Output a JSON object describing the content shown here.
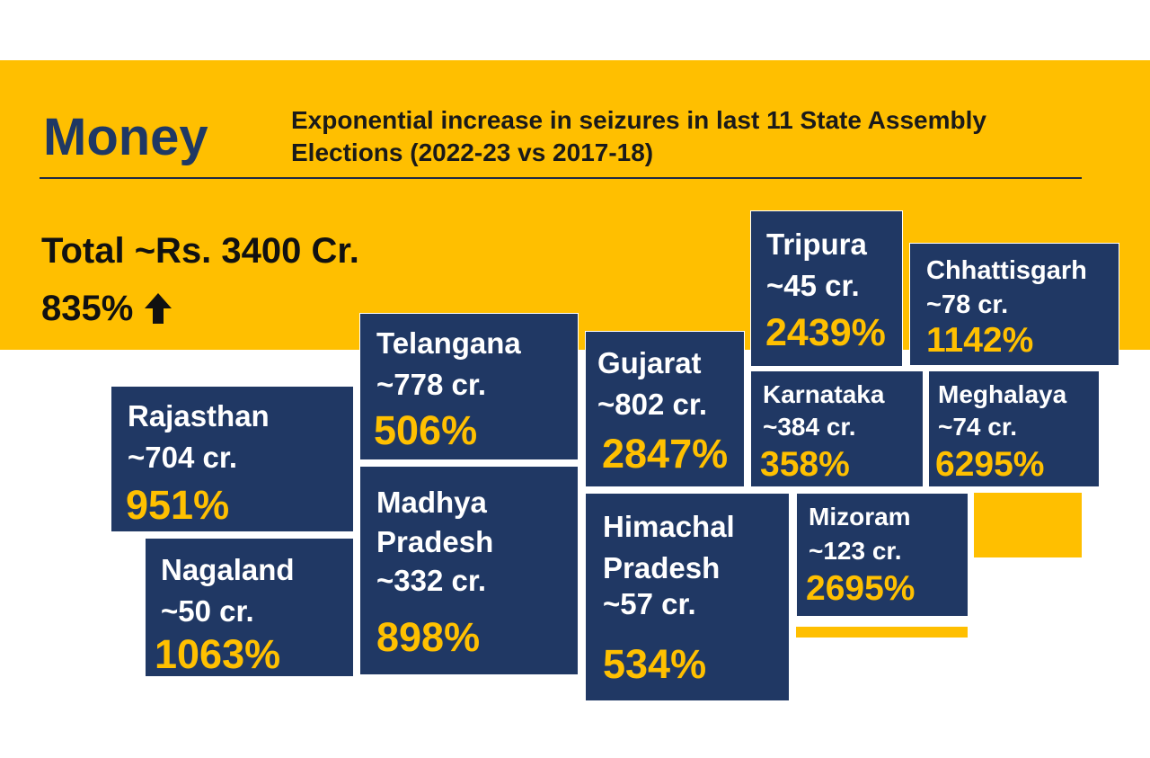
{
  "header": {
    "title": "Money",
    "subtitle": "Exponential increase in seizures in last 11 State Assembly Elections (2022-23 vs 2017-18)"
  },
  "summary": {
    "total": "Total ~Rs. 3400 Cr.",
    "increase": "835%",
    "increase_icon": "arrow-up-icon"
  },
  "colors": {
    "banner": "#ffbf00",
    "tile": "#203864",
    "heading": "#1f3864",
    "percent": "#ffc000"
  },
  "states": [
    {
      "name": "Rajasthan",
      "amount": "~704 cr.",
      "percent": "951%"
    },
    {
      "name": "Nagaland",
      "amount": "~50 cr.",
      "percent": "1063%"
    },
    {
      "name": "Telangana",
      "amount": "~778 cr.",
      "percent": "506%"
    },
    {
      "name": "Madhya Pradesh",
      "amount": "~332 cr.",
      "percent": "898%"
    },
    {
      "name": "Gujarat",
      "amount": "~802 cr.",
      "percent": "2847%"
    },
    {
      "name": "Himachal Pradesh",
      "amount": "~57 cr.",
      "percent": "534%"
    },
    {
      "name": "Tripura",
      "amount": "~45 cr.",
      "percent": "2439%"
    },
    {
      "name": "Chhattisgarh",
      "amount": "~78 cr.",
      "percent": "1142%"
    },
    {
      "name": "Karnataka",
      "amount": "~384 cr.",
      "percent": "358%"
    },
    {
      "name": "Meghalaya",
      "amount": "~74 cr.",
      "percent": "6295%"
    },
    {
      "name": "Mizoram",
      "amount": "~123 cr.",
      "percent": "2695%"
    }
  ]
}
